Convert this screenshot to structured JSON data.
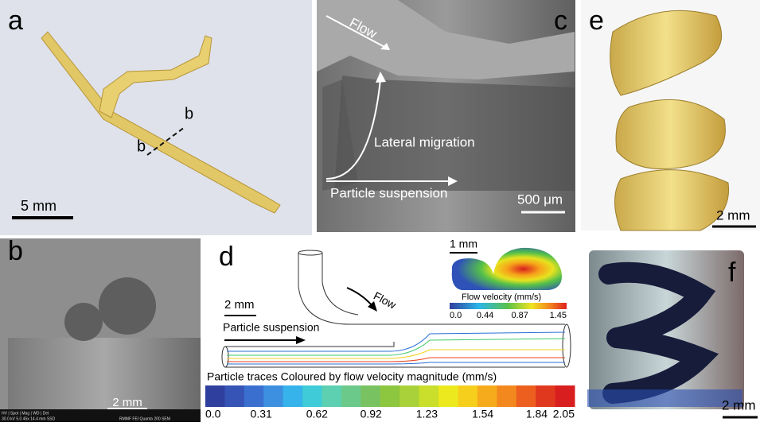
{
  "panels": {
    "a": {
      "label": "a",
      "section_marks": [
        "b",
        "b"
      ],
      "scale_bar": "5 mm"
    },
    "c": {
      "label": "c",
      "flow": "Flow",
      "lateral": "Lateral migration",
      "suspension": "Particle suspension",
      "scale_bar": "500 μm"
    },
    "e": {
      "label": "e",
      "scale_bar": "2 mm"
    },
    "b": {
      "label": "b",
      "scale_bar": "2 mm",
      "info_header": "HV | Spot | Mag | WD | Det",
      "info_values": "30.0 kV 5.0 45x 14.4 mm SSD",
      "info_lab": "RMMF FEI Quanta 200 SEM"
    },
    "d": {
      "label": "d",
      "flow": "Flow",
      "scale_bar": "2 mm",
      "suspension": "Particle suspension",
      "inset_scale": "1 mm",
      "inset_title": "Flow velocity (mm/s)",
      "inset_ticks": [
        "0.0",
        "0.44",
        "0.87",
        "1.45"
      ],
      "colorbar_title": "Particle traces Coloured by flow velocity magnitude (mm/s)",
      "colorbar_ticks": [
        "0.0",
        "0.31",
        "0.62",
        "0.92",
        "1.23",
        "1.54",
        "1.84",
        "2.05"
      ]
    },
    "f": {
      "label": "f",
      "scale_bar": "2 mm"
    }
  }
}
